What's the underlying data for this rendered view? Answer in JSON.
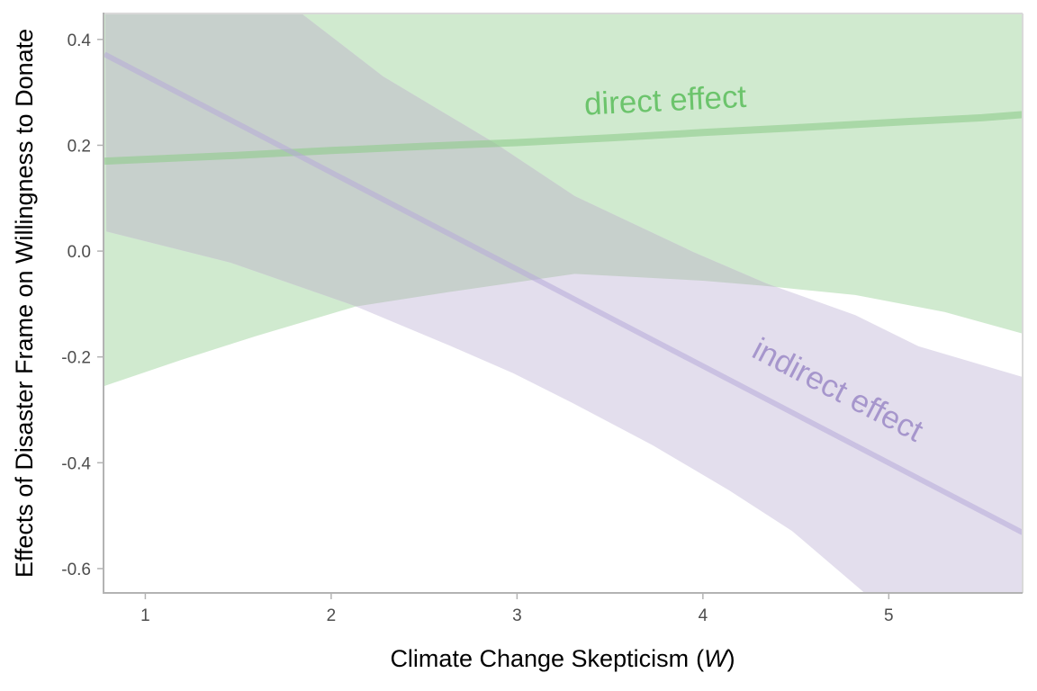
{
  "chart_data": {
    "type": "line",
    "title": "",
    "xlabel": "Climate Change Skepticism",
    "xlabel_var": "W",
    "ylabel": "Effects of Disaster Frame on Willingness to Donate",
    "xlim": [
      0.78,
      5.72
    ],
    "ylim": [
      -0.646,
      0.449
    ],
    "x_ticks": [
      1,
      2,
      3,
      4,
      5
    ],
    "x_tick_labels": [
      "1",
      "2",
      "3",
      "4",
      "5"
    ],
    "y_ticks": [
      0.4,
      0.2,
      0.0,
      -0.2,
      -0.4,
      -0.6
    ],
    "y_tick_labels": [
      "0.4",
      "0.2",
      "0.0",
      "-0.2",
      "-0.4",
      "-0.6"
    ],
    "grid": false,
    "legend": "none (direct labels on series)",
    "colors": {
      "direct": "#6cc46c",
      "direct_line": "#a8d8a4",
      "direct_band": "#d0eacf",
      "indirect": "#a696cc",
      "indirect_line": "#cdc3e2",
      "indirect_band": "#e3deed",
      "overlap_band": "#c7d0cc"
    },
    "series": [
      {
        "name": "direct effect",
        "label": "direct effect",
        "x": [
          0.78,
          1.5,
          2.0,
          2.5,
          3.0,
          3.5,
          4.0,
          4.5,
          5.0,
          5.5,
          5.72
        ],
        "values": [
          0.17,
          0.181,
          0.19,
          0.198,
          0.205,
          0.214,
          0.224,
          0.233,
          0.243,
          0.252,
          0.258
        ],
        "ci_lower": {
          "x": [
            0.78,
            1.19,
            1.6,
            2.13,
            2.64,
            3.31,
            4.0,
            4.34,
            4.82,
            5.3,
            5.72
          ],
          "values": [
            -0.255,
            -0.206,
            -0.16,
            -0.105,
            -0.077,
            -0.043,
            -0.056,
            -0.066,
            -0.083,
            -0.115,
            -0.156
          ]
        },
        "ci_upper": {
          "x": [
            0.78,
            3.0,
            5.72
          ],
          "values": [
            0.6,
            0.62,
            0.67
          ]
        }
      },
      {
        "name": "indirect effect",
        "label": "indirect effect",
        "x": [
          0.78,
          5.72
        ],
        "values": [
          0.372,
          -0.532
        ],
        "ci_lower": {
          "x": [
            0.79,
            1.46,
            2.13,
            2.64,
            2.98,
            3.32,
            3.73,
            4.14,
            4.48,
            4.87,
            5.3,
            5.72
          ],
          "values": [
            0.037,
            -0.022,
            -0.104,
            -0.179,
            -0.231,
            -0.291,
            -0.367,
            -0.452,
            -0.529,
            -0.646,
            -0.74,
            -0.85
          ]
        },
        "ci_upper": {
          "x": [
            0.78,
            1.3,
            1.84,
            2.28,
            2.89,
            3.31,
            3.95,
            4.34,
            4.82,
            5.16,
            5.72
          ],
          "values": [
            0.75,
            0.6,
            0.449,
            0.33,
            0.202,
            0.104,
            -0.002,
            -0.061,
            -0.121,
            -0.18,
            -0.238
          ]
        }
      }
    ],
    "annotations": [
      {
        "text": "direct effect",
        "x": 3.8,
        "y": 0.265,
        "series": "direct effect"
      },
      {
        "text": "indirect effect",
        "x": 4.7,
        "y": -0.28,
        "series": "indirect effect"
      }
    ]
  }
}
